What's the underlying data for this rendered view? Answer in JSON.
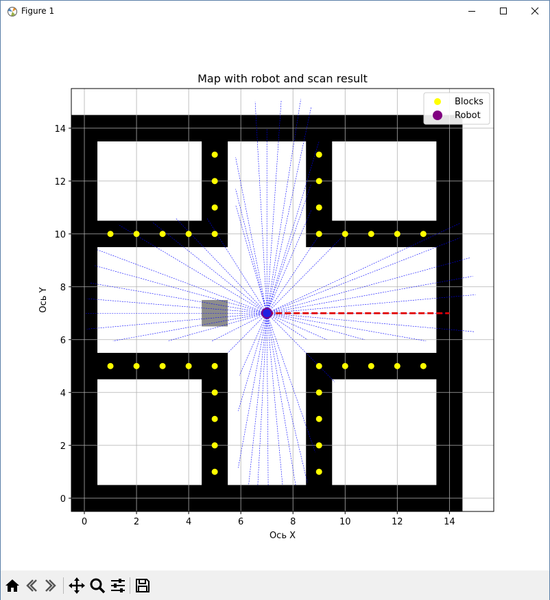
{
  "window": {
    "title": "Figure 1",
    "controls": [
      "minimize-icon",
      "maximize-icon",
      "close-icon"
    ]
  },
  "toolbar": {
    "tools": [
      "home-icon",
      "back-arrow-icon",
      "forward-arrow-icon",
      "pan-icon",
      "zoom-icon",
      "configure-subplots-icon",
      "save-icon"
    ]
  },
  "chart_data": {
    "type": "scatter",
    "title": "Map with robot and scan result",
    "xlabel": "Ось X",
    "ylabel": "Ось Y",
    "xlim": [
      -0.5,
      15.7
    ],
    "ylim": [
      -0.5,
      15.5
    ],
    "xticks": [
      0,
      2,
      4,
      6,
      8,
      10,
      12,
      14
    ],
    "yticks": [
      0,
      2,
      4,
      6,
      8,
      10,
      12,
      14
    ],
    "grid": true,
    "legend": {
      "placement": "top-right",
      "entries": [
        {
          "label": "Blocks",
          "color": "#ffff00",
          "marker": "circle"
        },
        {
          "label": "Robot",
          "color": "#800080",
          "marker": "circle"
        }
      ]
    },
    "map": {
      "outer": [
        0,
        0,
        14,
        14
      ],
      "cell_size": 1,
      "rooms": [
        {
          "x0": 0.5,
          "x1": 4.5,
          "y0": 10.5,
          "y1": 13.5
        },
        {
          "x0": 9.5,
          "x1": 13.5,
          "y0": 10.5,
          "y1": 13.5
        },
        {
          "x0": 0.5,
          "x1": 4.5,
          "y0": 0.5,
          "y1": 4.5
        },
        {
          "x0": 9.5,
          "x1": 13.5,
          "y0": 0.5,
          "y1": 4.5
        },
        {
          "x0": 5.5,
          "x1": 8.5,
          "y0": 0.5,
          "y1": 13.5
        },
        {
          "x0": 0.5,
          "x1": 13.5,
          "y0": 5.5,
          "y1": 9.5
        }
      ],
      "gray_cell": {
        "x0": 4.5,
        "x1": 5.5,
        "y0": 6.5,
        "y1": 7.5
      },
      "colors": {
        "wall": "#000000",
        "free": "#ffffff",
        "gray": "#8c8c8c"
      }
    },
    "blocks": [
      [
        5,
        13
      ],
      [
        5,
        12
      ],
      [
        5,
        11
      ],
      [
        5,
        10
      ],
      [
        9,
        13
      ],
      [
        9,
        12
      ],
      [
        9,
        11
      ],
      [
        9,
        10
      ],
      [
        1,
        10
      ],
      [
        2,
        10
      ],
      [
        3,
        10
      ],
      [
        4,
        10
      ],
      [
        10,
        10
      ],
      [
        11,
        10
      ],
      [
        12,
        10
      ],
      [
        13,
        10
      ],
      [
        1,
        5
      ],
      [
        2,
        5
      ],
      [
        3,
        5
      ],
      [
        4,
        5
      ],
      [
        5,
        5
      ],
      [
        9,
        5
      ],
      [
        10,
        5
      ],
      [
        11,
        5
      ],
      [
        12,
        5
      ],
      [
        13,
        5
      ],
      [
        5,
        4
      ],
      [
        5,
        3
      ],
      [
        5,
        2
      ],
      [
        5,
        1
      ],
      [
        9,
        4
      ],
      [
        9,
        3
      ],
      [
        9,
        2
      ],
      [
        9,
        1
      ]
    ],
    "robot": {
      "x": 7,
      "y": 7,
      "color": "#800080"
    },
    "heading_line": {
      "from": [
        7,
        7
      ],
      "to": [
        14,
        7
      ],
      "color": "#e00000",
      "style": "dashed"
    },
    "scan": {
      "color": "#0000ff",
      "origin": [
        7,
        7
      ],
      "endpoints": [
        [
          14,
          7
        ],
        [
          14.95,
          6.3
        ],
        [
          13.1,
          5.95
        ],
        [
          10.75,
          6.0
        ],
        [
          9.3,
          6.0
        ],
        [
          8.55,
          6.0
        ],
        [
          9.6,
          4.4
        ],
        [
          8.85,
          1.75
        ],
        [
          8.55,
          0.6
        ],
        [
          8.1,
          0.5
        ],
        [
          7.6,
          0.5
        ],
        [
          7.05,
          0.5
        ],
        [
          6.65,
          0.5
        ],
        [
          6.3,
          0.5
        ],
        [
          5.9,
          1.15
        ],
        [
          5.9,
          3.3
        ],
        [
          5.95,
          4.65
        ],
        [
          5.5,
          5.5
        ],
        [
          4.9,
          5.95
        ],
        [
          3.2,
          5.95
        ],
        [
          1.1,
          5.95
        ],
        [
          0.1,
          6.4
        ],
        [
          0.05,
          7.0
        ],
        [
          0.1,
          7.55
        ],
        [
          0.2,
          8.15
        ],
        [
          0.4,
          8.8
        ],
        [
          0.5,
          9.4
        ],
        [
          1.3,
          10.35
        ],
        [
          2.6,
          10.45
        ],
        [
          3.5,
          10.6
        ],
        [
          4.7,
          10.6
        ],
        [
          5.8,
          11.1
        ],
        [
          5.8,
          11.7
        ],
        [
          5.8,
          12.9
        ],
        [
          6.55,
          15.0
        ],
        [
          7.0,
          14.0
        ],
        [
          7.55,
          15.05
        ],
        [
          8.3,
          15.1
        ],
        [
          8.7,
          14.8
        ],
        [
          9.0,
          13.5
        ],
        [
          8.7,
          11.9
        ],
        [
          8.7,
          10.9
        ],
        [
          9.1,
          10.1
        ],
        [
          10.1,
          10.1
        ],
        [
          14.4,
          10.4
        ],
        [
          14.4,
          9.85
        ],
        [
          14.8,
          9.1
        ],
        [
          14.9,
          8.4
        ],
        [
          15.0,
          7.7
        ]
      ]
    }
  }
}
